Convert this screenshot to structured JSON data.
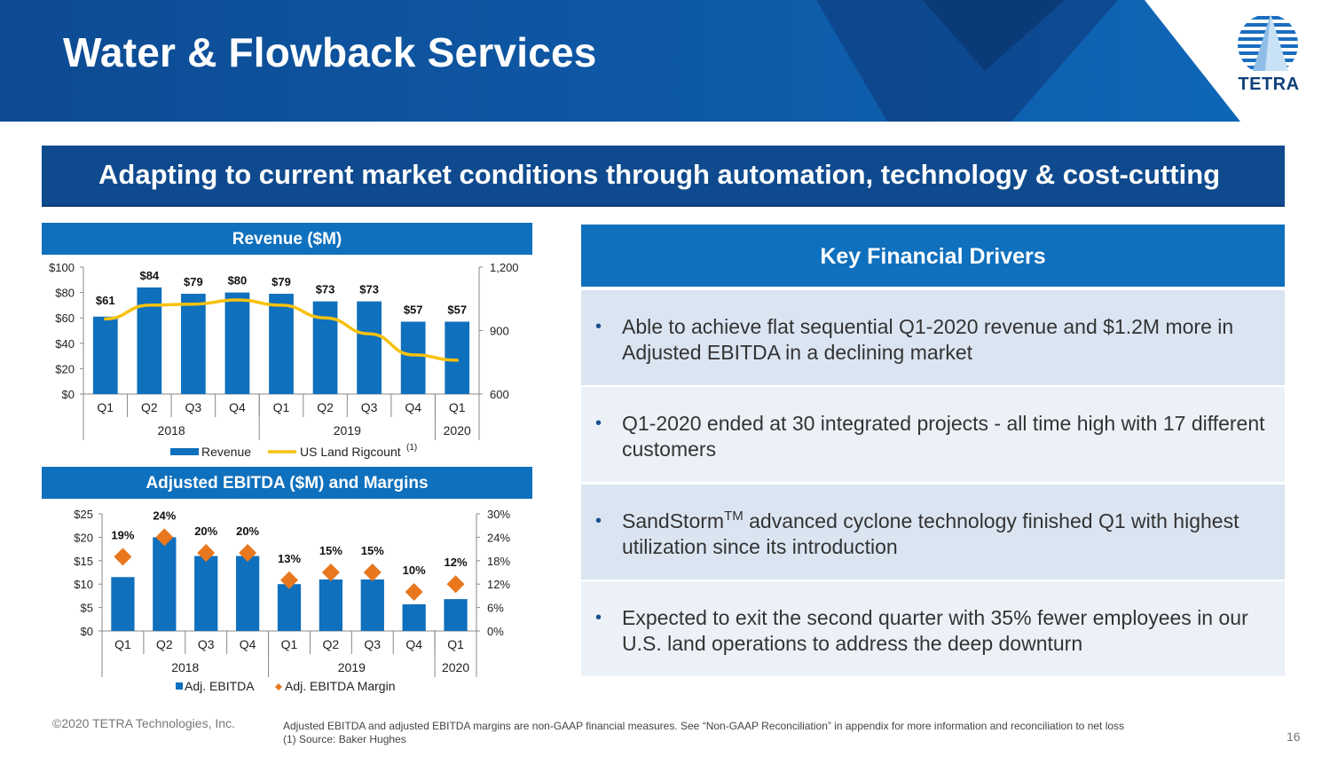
{
  "header": {
    "title": "Water & Flowback Services",
    "logo_text": "TETRA",
    "colors": {
      "dark_blue": "#0f4a8e",
      "mid_blue": "#0f70bd",
      "navy": "#0d2f63"
    }
  },
  "banner": {
    "text": "Adapting to current market conditions through automation, technology & cost-cutting"
  },
  "revenue_panel": {
    "title": "Revenue ($M)"
  },
  "ebitda_panel": {
    "title": "Adjusted EBITDA ($M) and Margins"
  },
  "chart_data": [
    {
      "type": "bar",
      "title": "Revenue ($M)",
      "categories": [
        "Q1",
        "Q2",
        "Q3",
        "Q4",
        "Q1",
        "Q2",
        "Q3",
        "Q4",
        "Q1"
      ],
      "year_groups": [
        {
          "label": "2018",
          "span": 4
        },
        {
          "label": "2019",
          "span": 4
        },
        {
          "label": "2020",
          "span": 1
        }
      ],
      "series": [
        {
          "name": "Revenue",
          "type": "bar",
          "axis": "left",
          "color": "#0f70bd",
          "values": [
            61,
            84,
            79,
            80,
            79,
            73,
            73,
            57,
            57
          ],
          "labels": [
            "$61",
            "$84",
            "$79",
            "$80",
            "$79",
            "$73",
            "$73",
            "$57",
            "$57"
          ]
        },
        {
          "name": "US Land Rigcount",
          "name_superscript": "(1)",
          "type": "line",
          "axis": "right",
          "color": "#f7c10e",
          "values": [
            955,
            1020,
            1025,
            1045,
            1020,
            960,
            885,
            785,
            760
          ]
        }
      ],
      "ylim_left": [
        0,
        100
      ],
      "yticks_left": [
        "$0",
        "$20",
        "$40",
        "$60",
        "$80",
        "$100"
      ],
      "ylim_right": [
        600,
        1200
      ],
      "yticks_right": [
        "600",
        "900",
        "1,200"
      ],
      "legend_position": "bottom"
    },
    {
      "type": "bar",
      "title": "Adjusted EBITDA ($M) and Margins",
      "categories": [
        "Q1",
        "Q2",
        "Q3",
        "Q4",
        "Q1",
        "Q2",
        "Q3",
        "Q4",
        "Q1"
      ],
      "year_groups": [
        {
          "label": "2018",
          "span": 4
        },
        {
          "label": "2019",
          "span": 4
        },
        {
          "label": "2020",
          "span": 1
        }
      ],
      "series": [
        {
          "name": "Adj. EBITDA",
          "type": "bar",
          "axis": "left",
          "color": "#0f70bd",
          "values": [
            11.5,
            20,
            16,
            16,
            10,
            11,
            11,
            5.7,
            6.8
          ]
        },
        {
          "name": "Adj. EBITDA Margin",
          "type": "marker",
          "axis": "right",
          "color": "#e8771e",
          "values": [
            19,
            24,
            20,
            20,
            13,
            15,
            15,
            10,
            12
          ],
          "labels": [
            "19%",
            "24%",
            "20%",
            "20%",
            "13%",
            "15%",
            "15%",
            "10%",
            "12%"
          ]
        }
      ],
      "ylim_left": [
        0,
        25
      ],
      "yticks_left": [
        "$0",
        "$5",
        "$10",
        "$15",
        "$20",
        "$25"
      ],
      "ylim_right": [
        0,
        30
      ],
      "yticks_right": [
        "0%",
        "6%",
        "12%",
        "18%",
        "24%",
        "30%"
      ],
      "legend_position": "bottom"
    }
  ],
  "key_drivers": {
    "title": "Key Financial Drivers",
    "items": [
      {
        "text": "Able to achieve flat sequential Q1-2020 revenue and $1.2M more in Adjusted EBITDA in a declining market"
      },
      {
        "text": "Q1-2020 ended at 30 integrated projects - all time high with 17 different customers"
      },
      {
        "text_before": "SandStorm",
        "superscript": "TM",
        "text_after": " advanced cyclone technology finished Q1 with highest utilization since its introduction"
      },
      {
        "text": "Expected to exit the second quarter with 35% fewer employees in our U.S. land operations to address the deep downturn"
      }
    ]
  },
  "footer": {
    "copyright": "©2020 TETRA Technologies, Inc.",
    "note": "Adjusted EBITDA  and adjusted EBITDA margins are non-GAAP financial measures. See “Non-GAAP Reconciliation” in appendix for more information and reconciliation to net loss",
    "source": "(1)    Source: Baker Hughes",
    "page_number": "16"
  }
}
